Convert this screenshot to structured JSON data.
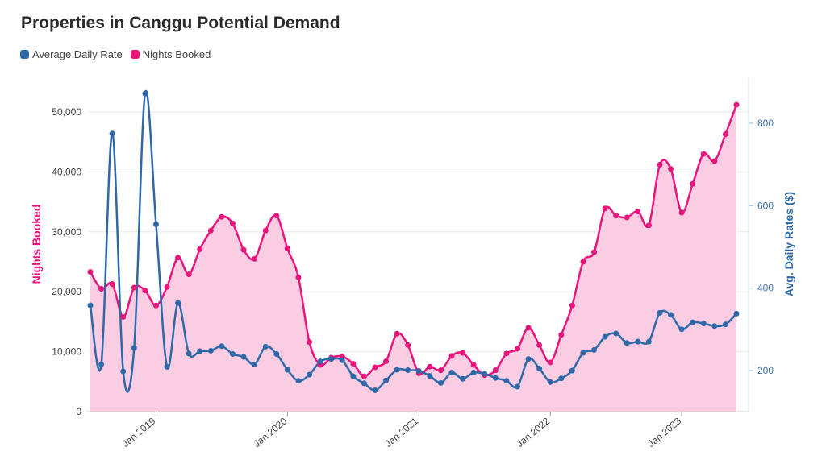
{
  "chart_data": {
    "type": "line",
    "title": "Properties in Canggu Potential Demand",
    "legend_position": "top-left",
    "grid": true,
    "x_ticks": [
      "Jan 2019",
      "Jan 2020",
      "Jan 2021",
      "Jan 2022",
      "Jan 2023"
    ],
    "x": [
      "2018-07",
      "2018-08",
      "2018-09",
      "2018-10",
      "2018-11",
      "2018-12",
      "2019-01",
      "2019-02",
      "2019-03",
      "2019-04",
      "2019-05",
      "2019-06",
      "2019-07",
      "2019-08",
      "2019-09",
      "2019-10",
      "2019-11",
      "2019-12",
      "2020-01",
      "2020-02",
      "2020-03",
      "2020-04",
      "2020-05",
      "2020-06",
      "2020-07",
      "2020-08",
      "2020-09",
      "2020-10",
      "2020-11",
      "2020-12",
      "2021-01",
      "2021-02",
      "2021-03",
      "2021-04",
      "2021-05",
      "2021-06",
      "2021-07",
      "2021-08",
      "2021-09",
      "2021-10",
      "2021-11",
      "2021-12",
      "2022-01",
      "2022-02",
      "2022-03",
      "2022-04",
      "2022-05",
      "2022-06",
      "2022-07",
      "2022-08",
      "2022-09",
      "2022-10",
      "2022-11",
      "2022-12",
      "2023-01",
      "2023-02",
      "2023-03",
      "2023-04",
      "2023-05",
      "2023-06"
    ],
    "yleft_label": "Nights Booked",
    "yleft_lim": [
      0,
      55000
    ],
    "yleft_ticks": [
      "0",
      "10,000",
      "20,000",
      "30,000",
      "40,000",
      "50,000"
    ],
    "yright_label": "Avg. Daily Rates ($)",
    "yright_lim": [
      100,
      900
    ],
    "yright_ticks": [
      "200",
      "400",
      "600",
      "800"
    ],
    "series": [
      {
        "name": "Nights Booked",
        "axis": "left",
        "type": "area",
        "color": "#e8157d",
        "fill": "#fbcde3",
        "values": [
          23300,
          20500,
          21300,
          15800,
          20700,
          20200,
          17700,
          20800,
          25700,
          22900,
          27100,
          30200,
          32500,
          31400,
          27000,
          25500,
          30200,
          32700,
          27200,
          22400,
          11600,
          7800,
          9000,
          9200,
          8000,
          5900,
          7400,
          8400,
          13000,
          11100,
          6400,
          7500,
          6900,
          9300,
          9800,
          7800,
          6100,
          6900,
          9700,
          10500,
          14000,
          11100,
          8200,
          12800,
          17700,
          25000,
          26600,
          33900,
          32700,
          32400,
          33400,
          31100,
          41200,
          40500,
          33200,
          38000,
          43000,
          41800,
          46300,
          51200
        ]
      },
      {
        "name": "Average Daily Rate",
        "axis": "right",
        "type": "line",
        "color": "#2e68a8",
        "values": [
          358,
          215,
          775,
          198,
          255,
          872,
          555,
          209,
          364,
          241,
          247,
          248,
          259,
          240,
          233,
          215,
          258,
          240,
          202,
          175,
          190,
          222,
          228,
          225,
          186,
          169,
          152,
          176,
          202,
          201,
          199,
          187,
          170,
          195,
          180,
          195,
          192,
          182,
          175,
          161,
          228,
          205,
          172,
          181,
          200,
          243,
          250,
          282,
          290,
          267,
          270,
          270,
          340,
          335,
          300,
          317,
          314,
          308,
          312,
          338
        ]
      }
    ]
  }
}
